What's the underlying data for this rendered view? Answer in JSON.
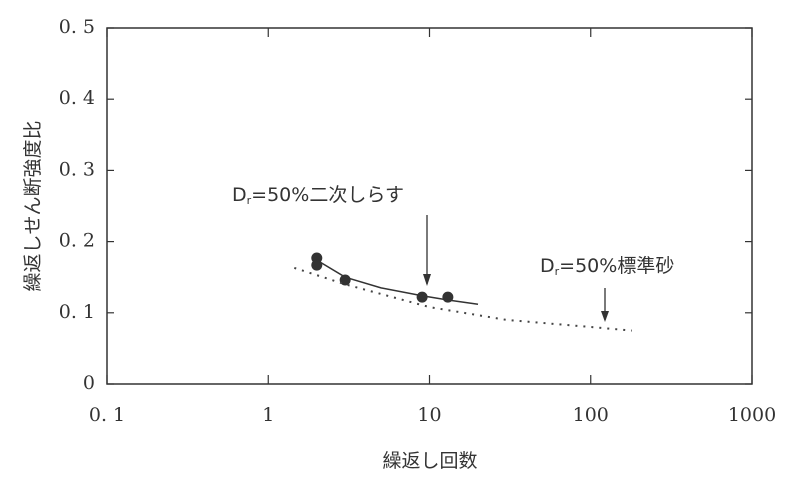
{
  "chart_data": {
    "type": "scatter",
    "x_label": "繰返し回数",
    "y_label": "繰返しせん断強度比",
    "log_x": true,
    "xlim": [
      0.1,
      1000
    ],
    "ylim": [
      0,
      0.5
    ],
    "xticks": [
      {
        "value": 0.1,
        "label": "0. 1"
      },
      1,
      10,
      100,
      1000
    ],
    "yticks": [
      {
        "value": 0,
        "label": "0"
      },
      {
        "value": 0.1,
        "label": "0. 1"
      },
      {
        "value": 0.2,
        "label": "0. 2"
      },
      {
        "value": 0.3,
        "label": "0. 3"
      },
      {
        "value": 0.4,
        "label": "0. 4"
      },
      {
        "value": 0.5,
        "label": "0. 5"
      }
    ],
    "series": [
      {
        "style": "points",
        "color": "#333333",
        "x": [
          2,
          2,
          3,
          9,
          13
        ],
        "values": [
          0.177,
          0.167,
          0.146,
          0.122,
          0.122
        ]
      },
      {
        "style": "solid",
        "color": "#333333",
        "x": [
          2,
          3,
          5,
          9,
          13,
          20
        ],
        "values": [
          0.174,
          0.15,
          0.135,
          0.124,
          0.118,
          0.112
        ]
      },
      {
        "style": "dotted",
        "color": "#444444",
        "x": [
          1.45,
          3,
          10,
          30,
          100,
          180
        ],
        "values": [
          0.163,
          0.14,
          0.108,
          0.09,
          0.08,
          0.075
        ]
      }
    ],
    "annotations": [
      {
        "main": "D",
        "sub": "r",
        "rest": "=50%二次しらす"
      },
      {
        "main": "D",
        "sub": "r",
        "rest": "=50%標準砂"
      }
    ]
  }
}
